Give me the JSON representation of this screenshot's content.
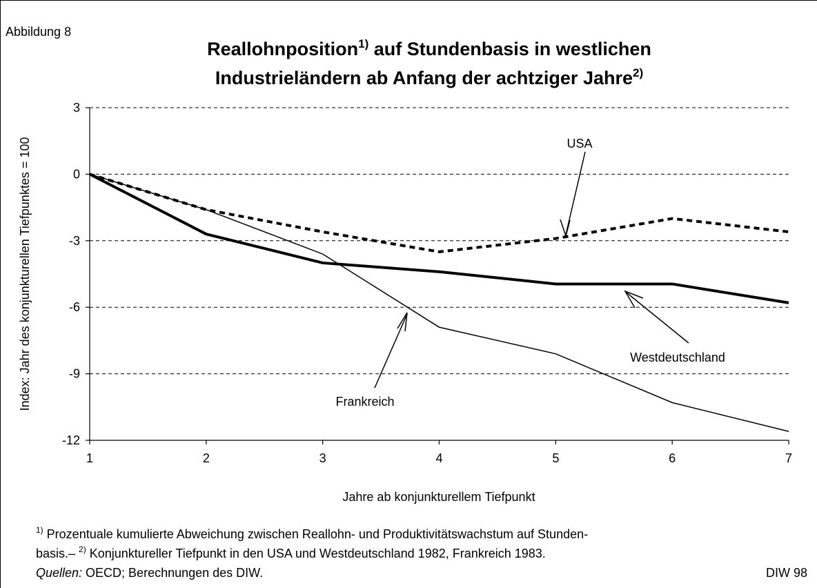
{
  "chart_data": {
    "type": "line",
    "figure_label": "Abbildung 8",
    "title_part1": "Reallohnposition",
    "title_sup1": "1)",
    "title_part2": " auf Stundenbasis in westlichen",
    "title_part3": "Industrieländern ab Anfang der achtziger Jahre",
    "title_sup2": "2)",
    "x_label": "Jahre ab konjunkturellem Tiefpunkt",
    "y_label": "Index: Jahr des konjunkturellen Tiefpunktes = 100",
    "x": [
      1,
      2,
      3,
      4,
      5,
      6,
      7
    ],
    "series": [
      {
        "name": "USA",
        "color": "#000000",
        "dashed": true,
        "width": 4,
        "values": [
          0,
          -1.6,
          -2.6,
          -3.5,
          -2.9,
          -2.0,
          -2.6
        ]
      },
      {
        "name": "Westdeutschland",
        "color": "#000000",
        "dashed": false,
        "width": 4,
        "values": [
          0,
          -2.7,
          -4.0,
          -4.4,
          -4.95,
          -4.95,
          -5.8
        ]
      },
      {
        "name": "Frankreich",
        "color": "#000000",
        "dashed": false,
        "width": 1.5,
        "values": [
          0,
          -1.6,
          -3.6,
          -6.9,
          -8.1,
          -10.3,
          -11.6
        ]
      }
    ],
    "xlim": [
      1,
      7
    ],
    "ylim": [
      -12,
      3
    ],
    "xticks": [
      1,
      2,
      3,
      4,
      5,
      6,
      7
    ],
    "yticks": [
      3,
      0,
      -3,
      -6,
      -9,
      -12
    ],
    "grid": true,
    "footnote1_sup": "1)",
    "footnote1": " Prozentuale kumulierte Abweichung zwischen Reallohn- und Produktivitätswachstum auf Stunden-",
    "footnote2_pre": "basis.– ",
    "footnote2_sup": "2)",
    "footnote2": " Konjunktureller Tiefpunkt in den USA und Westdeutschland 1982, Frankreich 1983.",
    "source_label": "Quellen:",
    "source": " OECD; Berechnungen des DIW.",
    "credit": "DIW 98"
  }
}
